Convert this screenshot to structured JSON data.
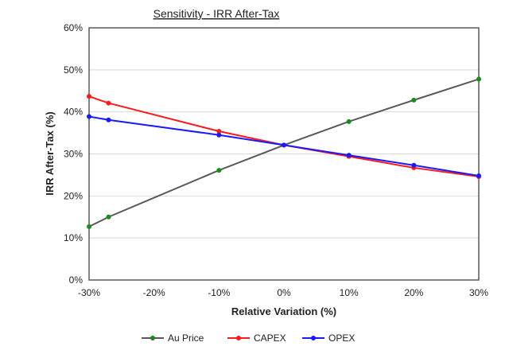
{
  "chart_data": {
    "type": "line",
    "title": "Sensitivity - IRR After-Tax",
    "xlabel": "Relative Variation (%)",
    "ylabel": "IRR After-Tax (%)",
    "xlim": [
      -30,
      30
    ],
    "ylim": [
      0,
      60
    ],
    "xticks": [
      -30,
      -20,
      -10,
      0,
      10,
      20,
      30
    ],
    "xtick_labels": [
      "-30%",
      "-20%",
      "-10%",
      "0%",
      "10%",
      "20%",
      "30%"
    ],
    "yticks": [
      0,
      10,
      20,
      30,
      40,
      50,
      60
    ],
    "ytick_labels": [
      "0%",
      "10%",
      "20%",
      "30%",
      "40%",
      "50%",
      "60%"
    ],
    "grid": "horizontal",
    "legend_position": "bottom",
    "x": [
      -30,
      -27,
      -10,
      0,
      10,
      20,
      30
    ],
    "series": [
      {
        "name": "Au Price",
        "color": "#595959",
        "marker_color": "#1a8a1a",
        "values": [
          12.7,
          15.0,
          26.1,
          32.1,
          37.7,
          42.8,
          47.8
        ]
      },
      {
        "name": "CAPEX",
        "color": "#ff1a1a",
        "marker_color": "#ff1a1a",
        "values": [
          43.7,
          42.1,
          35.4,
          32.1,
          29.4,
          26.7,
          24.6
        ]
      },
      {
        "name": "OPEX",
        "color": "#1a1aff",
        "marker_color": "#1a1aff",
        "values": [
          38.9,
          38.1,
          34.5,
          32.1,
          29.7,
          27.3,
          24.8
        ]
      }
    ]
  }
}
